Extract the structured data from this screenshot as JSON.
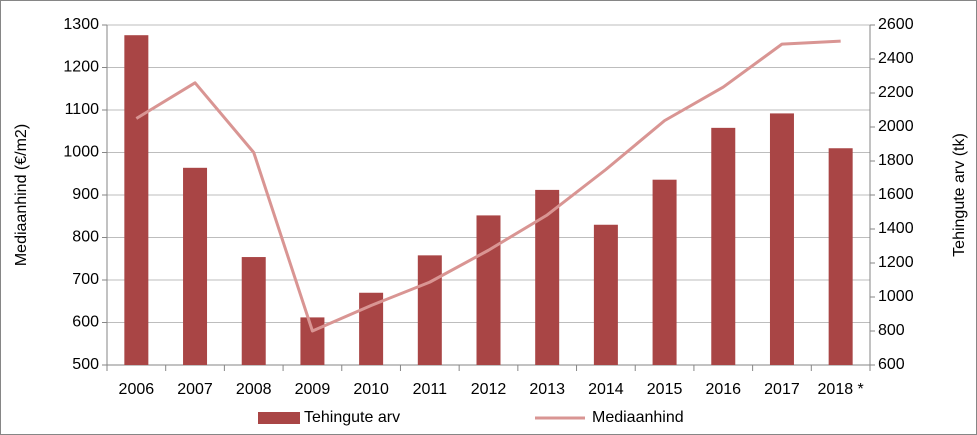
{
  "chart_data": {
    "type": "bar",
    "categories": [
      "2006",
      "2007",
      "2008",
      "2009",
      "2010",
      "2011",
      "2012",
      "2013",
      "2014",
      "2015",
      "2016",
      "2017",
      "2018 *"
    ],
    "series": [
      {
        "name": "Tehingute arv",
        "type": "bar",
        "axis": "y2",
        "color": "#a94545",
        "values": [
          2540,
          1760,
          1235,
          880,
          1025,
          1245,
          1480,
          1630,
          1425,
          1690,
          1995,
          2080,
          1875
        ]
      },
      {
        "name": "Mediaanhind",
        "type": "line",
        "axis": "y",
        "color": "#d99593",
        "values": [
          1080,
          1164,
          1000,
          580,
          640,
          695,
          770,
          853,
          960,
          1075,
          1154,
          1255,
          1262
        ]
      }
    ],
    "ylabel": "Mediaanhind (€/m2)",
    "y2label": "Tehingute arv (tk)",
    "ylim": [
      500,
      1300
    ],
    "yticks": [
      500,
      600,
      700,
      800,
      900,
      1000,
      1100,
      1200,
      1300
    ],
    "y2lim": [
      600,
      2600
    ],
    "y2ticks": [
      600,
      800,
      1000,
      1200,
      1400,
      1600,
      1800,
      2000,
      2200,
      2400,
      2600
    ],
    "grid": true,
    "legend": "bottom"
  }
}
